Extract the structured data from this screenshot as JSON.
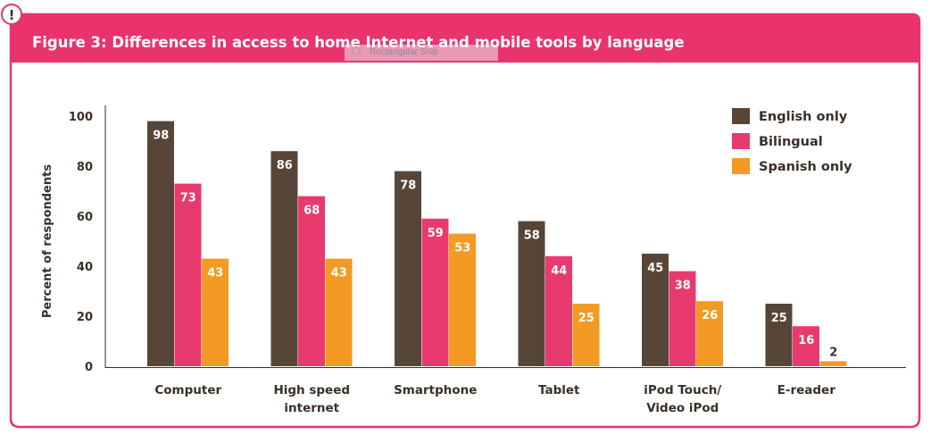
{
  "badge": {
    "symbol": "!"
  },
  "snip_overlay": {
    "label": "Rectangular Snip"
  },
  "colors": {
    "frame": "#e8336d",
    "english_only": "#574637",
    "bilingual": "#e93a6f",
    "spanish_only": "#f29a24",
    "axis_text": "#3a2f27",
    "bar_label": "#ffffff",
    "bar_label_dark": "#3a2f27"
  },
  "chart_data": {
    "type": "bar",
    "title": "Figure 3: Differences in access to home Internet and mobile tools by language",
    "xlabel": "",
    "ylabel": "Percent of respondents",
    "ylim": [
      0,
      100
    ],
    "yticks": [
      "0",
      "20",
      "40",
      "60",
      "80",
      "100"
    ],
    "grid": false,
    "legend_position": "top-right",
    "categories": [
      [
        "Computer"
      ],
      [
        "High speed",
        "internet"
      ],
      [
        "Smartphone"
      ],
      [
        "Tablet"
      ],
      [
        "iPod Touch/",
        "Video iPod"
      ],
      [
        "E-reader"
      ]
    ],
    "series": [
      {
        "name": "English only",
        "color": "#574637",
        "values": [
          98,
          86,
          78,
          58,
          45,
          25
        ]
      },
      {
        "name": "Bilingual",
        "color": "#e93a6f",
        "values": [
          73,
          68,
          59,
          44,
          38,
          16
        ]
      },
      {
        "name": "Spanish only",
        "color": "#f29a24",
        "values": [
          43,
          43,
          53,
          25,
          26,
          2
        ]
      }
    ]
  }
}
